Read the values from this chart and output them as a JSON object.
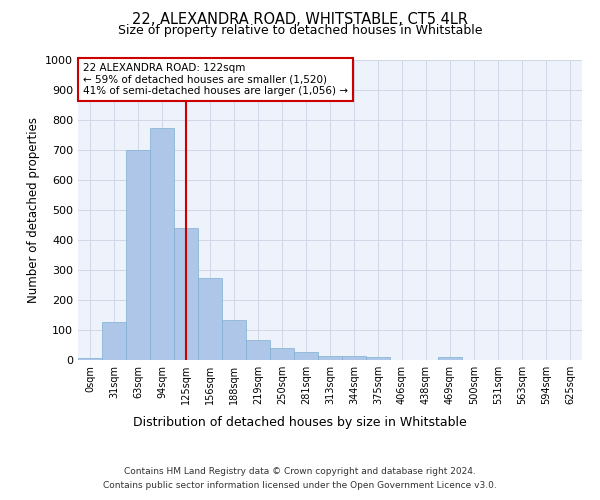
{
  "title": "22, ALEXANDRA ROAD, WHITSTABLE, CT5 4LR",
  "subtitle": "Size of property relative to detached houses in Whitstable",
  "xlabel": "Distribution of detached houses by size in Whitstable",
  "ylabel": "Number of detached properties",
  "bar_labels": [
    "0sqm",
    "31sqm",
    "63sqm",
    "94sqm",
    "125sqm",
    "156sqm",
    "188sqm",
    "219sqm",
    "250sqm",
    "281sqm",
    "313sqm",
    "344sqm",
    "375sqm",
    "406sqm",
    "438sqm",
    "469sqm",
    "500sqm",
    "531sqm",
    "563sqm",
    "594sqm",
    "625sqm"
  ],
  "bar_values": [
    8,
    128,
    700,
    775,
    440,
    275,
    133,
    68,
    40,
    27,
    15,
    12,
    10,
    0,
    0,
    10,
    0,
    0,
    0,
    0,
    0
  ],
  "bar_color": "#aec6e8",
  "bar_edge_color": "#7fafd4",
  "vline_x": 4,
  "vline_color": "#cc0000",
  "annotation_text": "22 ALEXANDRA ROAD: 122sqm\n← 59% of detached houses are smaller (1,520)\n41% of semi-detached houses are larger (1,056) →",
  "annotation_box_color": "#ffffff",
  "annotation_box_edge": "#cc0000",
  "ylim": [
    0,
    1000
  ],
  "yticks": [
    0,
    100,
    200,
    300,
    400,
    500,
    600,
    700,
    800,
    900,
    1000
  ],
  "grid_color": "#d0d8e8",
  "bg_color": "#eef2fa",
  "footer1": "Contains HM Land Registry data © Crown copyright and database right 2024.",
  "footer2": "Contains public sector information licensed under the Open Government Licence v3.0."
}
